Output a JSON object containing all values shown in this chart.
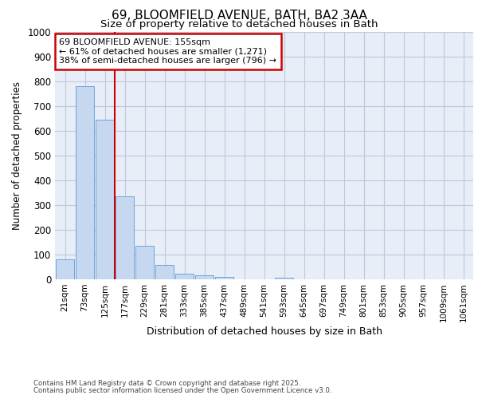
{
  "title_line1": "69, BLOOMFIELD AVENUE, BATH, BA2 3AA",
  "title_line2": "Size of property relative to detached houses in Bath",
  "xlabel": "Distribution of detached houses by size in Bath",
  "ylabel": "Number of detached properties",
  "annotation_line1": "69 BLOOMFIELD AVENUE: 155sqm",
  "annotation_line2": "← 61% of detached houses are smaller (1,271)",
  "annotation_line3": "38% of semi-detached houses are larger (796) →",
  "footer_line1": "Contains HM Land Registry data © Crown copyright and database right 2025.",
  "footer_line2": "Contains public sector information licensed under the Open Government Licence v3.0.",
  "categories": [
    "21sqm",
    "73sqm",
    "125sqm",
    "177sqm",
    "229sqm",
    "281sqm",
    "333sqm",
    "385sqm",
    "437sqm",
    "489sqm",
    "541sqm",
    "593sqm",
    "645sqm",
    "697sqm",
    "749sqm",
    "801sqm",
    "853sqm",
    "905sqm",
    "957sqm",
    "1009sqm",
    "1061sqm"
  ],
  "values": [
    80,
    780,
    645,
    335,
    135,
    57,
    22,
    17,
    10,
    0,
    0,
    7,
    0,
    0,
    0,
    0,
    0,
    0,
    0,
    0,
    0
  ],
  "bar_color": "#c5d8f0",
  "bar_edge_color": "#5b9bd5",
  "vline_x": 3.0,
  "vline_color": "#cc0000",
  "annotation_box_color": "#cc0000",
  "grid_color": "#c0c8d8",
  "bg_color": "#e8eef8",
  "ylim": [
    0,
    1000
  ],
  "yticks": [
    0,
    100,
    200,
    300,
    400,
    500,
    600,
    700,
    800,
    900,
    1000
  ]
}
